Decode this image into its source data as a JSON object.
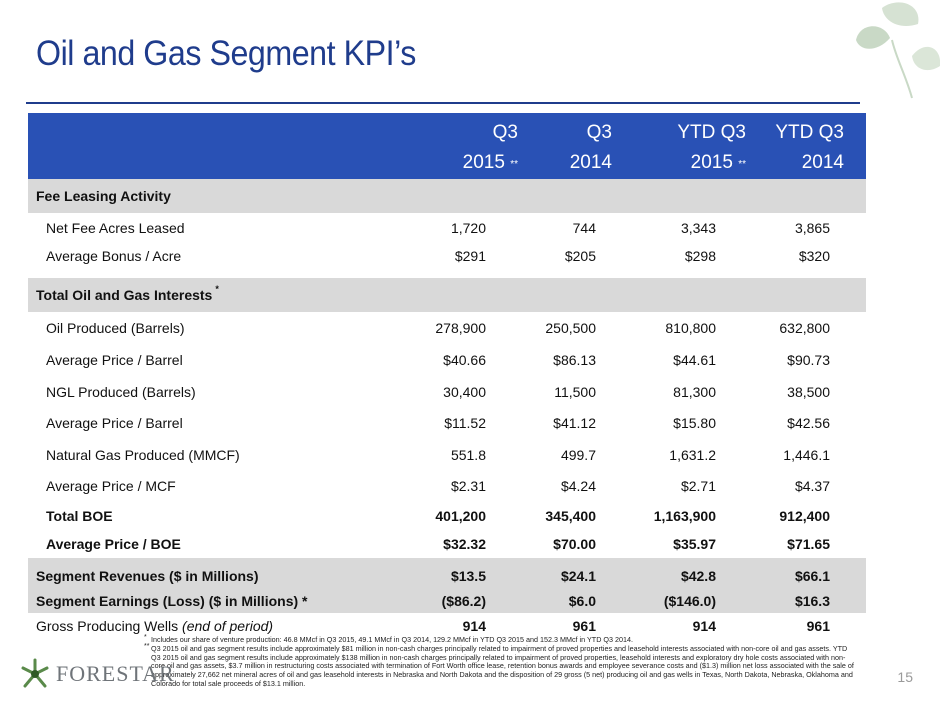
{
  "title": "Oil and Gas Segment KPI’s",
  "page_number": "15",
  "logo": {
    "text": "FORESTAR"
  },
  "header": {
    "columns": [
      {
        "line1": "Q3",
        "line2": "2015",
        "mark": "**"
      },
      {
        "line1": "Q3",
        "line2": "2014",
        "mark": ""
      },
      {
        "line1": "YTD Q3",
        "line2": "2015",
        "mark": "**"
      },
      {
        "line1": "YTD Q3",
        "line2": "2014",
        "mark": ""
      }
    ]
  },
  "rows": [
    {
      "label": "Fee Leasing Activity",
      "mark": "",
      "values": [],
      "type": "section"
    },
    {
      "label": "Net Fee Acres Leased",
      "values": [
        "1,720",
        "744",
        "3,343",
        "3,865"
      ],
      "type": "item"
    },
    {
      "label": "Average Bonus / Acre",
      "values": [
        "$291",
        "$205",
        "$298",
        "$320"
      ],
      "type": "item"
    },
    {
      "label": "Total Oil and Gas Interests",
      "mark": "*",
      "values": [],
      "type": "section"
    },
    {
      "label": "Oil Produced (Barrels)",
      "values": [
        "278,900",
        "250,500",
        "810,800",
        "632,800"
      ],
      "type": "item"
    },
    {
      "label": "Average Price / Barrel",
      "values": [
        "$40.66",
        "$86.13",
        "$44.61",
        "$90.73"
      ],
      "type": "item"
    },
    {
      "label": "NGL Produced (Barrels)",
      "values": [
        "30,400",
        "11,500",
        "81,300",
        "38,500"
      ],
      "type": "item"
    },
    {
      "label": "Average Price / Barrel",
      "values": [
        "$11.52",
        "$41.12",
        "$15.80",
        "$42.56"
      ],
      "type": "item"
    },
    {
      "label": "Natural Gas Produced (MMCF)",
      "values": [
        "551.8",
        "499.7",
        "1,631.2",
        "1,446.1"
      ],
      "type": "item"
    },
    {
      "label": "Average Price / MCF",
      "values": [
        "$2.31",
        "$4.24",
        "$2.71",
        "$4.37"
      ],
      "type": "item"
    },
    {
      "label": "Total BOE",
      "values": [
        "401,200",
        "345,400",
        "1,163,900",
        "912,400"
      ],
      "type": "total"
    },
    {
      "label": "Average Price / BOE",
      "values": [
        "$32.32",
        "$70.00",
        "$35.97",
        "$71.65"
      ],
      "type": "total"
    },
    {
      "label": "Segment Revenues ($ in Millions)",
      "values": [
        "$13.5",
        "$24.1",
        "$42.8",
        "$66.1"
      ],
      "type": "summary"
    },
    {
      "label": "Segment Earnings (Loss) ($ in Millions) *",
      "values": [
        "($86.2)",
        "$6.0",
        "($146.0)",
        "$16.3"
      ],
      "type": "summary"
    },
    {
      "label": "Gross Producing Wells",
      "label_italic": "(end of period)",
      "values": [
        "914",
        "961",
        "914",
        "961"
      ],
      "type": "wells"
    }
  ],
  "footnotes": [
    {
      "mark": "*",
      "text": "Includes our share of venture production: 46.8 MMcf in Q3 2015, 49.1 MMcf in Q3 2014, 129.2 MMcf in YTD Q3 2015 and 152.3 MMcf in YTD Q3 2014."
    },
    {
      "mark": "**",
      "text": "Q3 2015 oil and gas segment results include approximately $81 million in non-cash charges principally related to impairment of proved properties and leasehold interests associated with non-core oil and gas assets. YTD Q3 2015 oil and gas segment results include approximately $138 million in non-cash charges principally related to impairment of proved properties, leasehold interests and exploratory dry hole costs associated with non-core oil and gas assets, $3.7 million in restructuring costs associated with termination of Fort Worth office lease, retention bonus awards and employee severance costs and ($1.3) million net loss associated with the sale of approximately 27,662 net mineral acres of oil and gas leasehold interests in Nebraska and North Dakota and the disposition of 29 gross (5 net) producing oil and gas wells in Texas, North Dakota, Nebraska, Oklahoma and Colorado for total sale proceeds of $13.1 million."
    }
  ],
  "colors": {
    "title": "#1f3c8c",
    "header_bg": "#2951b5",
    "shade": "#d9d9d9",
    "leaf": "#7fa67a"
  }
}
